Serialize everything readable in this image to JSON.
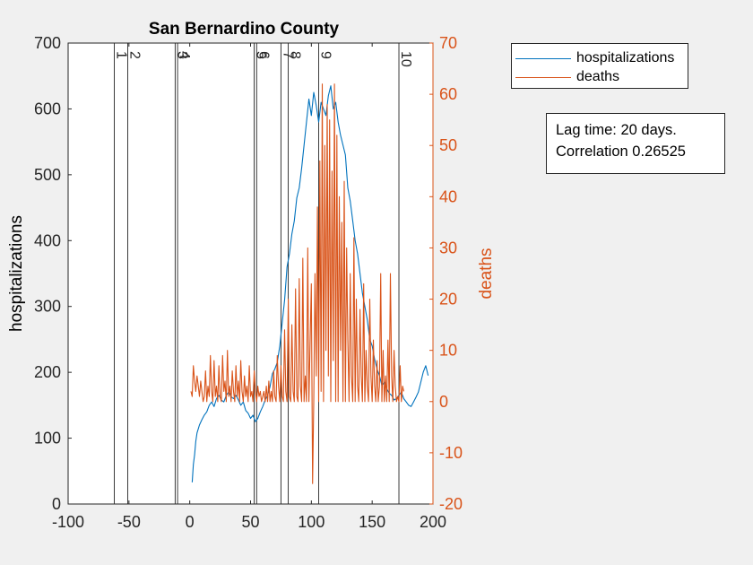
{
  "chart_data": {
    "type": "line",
    "title": "San Bernardino County",
    "xlabel": "",
    "ylabel": "hospitalizations",
    "ylabel_right": "deaths",
    "xlim": [
      -100,
      200
    ],
    "ylim": [
      0,
      700
    ],
    "ylim_right": [
      -20,
      70
    ],
    "xticks": [
      "-100",
      "-50",
      "0",
      "50",
      "100",
      "150",
      "200"
    ],
    "yticks": [
      "0",
      "100",
      "200",
      "300",
      "400",
      "500",
      "600",
      "700"
    ],
    "yticks_right": [
      "-20",
      "-10",
      "0",
      "10",
      "20",
      "30",
      "40",
      "50",
      "60",
      "70"
    ],
    "grid": false,
    "legend_position": "outside-top-right",
    "colors": {
      "hospitalizations": "#0072bd",
      "deaths": "#d95319",
      "event_lines": "#262626"
    },
    "events": [
      {
        "label": "1",
        "x": -62
      },
      {
        "label": "2",
        "x": -51
      },
      {
        "label": "3",
        "x": -12
      },
      {
        "label": "4",
        "x": -10
      },
      {
        "label": "5",
        "x": 53
      },
      {
        "label": "6",
        "x": 55
      },
      {
        "label": "7",
        "x": 75
      },
      {
        "label": "8",
        "x": 81
      },
      {
        "label": "9",
        "x": 106
      },
      {
        "label": "10",
        "x": 172
      }
    ],
    "series": [
      {
        "name": "hospitalizations",
        "axis": "left",
        "x": [
          2,
          3,
          4,
          5,
          6,
          8,
          10,
          12,
          14,
          16,
          18,
          20,
          22,
          24,
          26,
          28,
          30,
          32,
          34,
          36,
          38,
          40,
          42,
          44,
          46,
          48,
          50,
          52,
          54,
          56,
          58,
          60,
          62,
          64,
          66,
          68,
          70,
          72,
          74,
          76,
          78,
          80,
          82,
          84,
          86,
          88,
          90,
          92,
          94,
          96,
          98,
          100,
          102,
          104,
          106,
          108,
          110,
          112,
          114,
          116,
          118,
          120,
          122,
          124,
          126,
          128,
          130,
          132,
          134,
          136,
          138,
          140,
          142,
          144,
          146,
          148,
          150,
          152,
          154,
          156,
          158,
          160,
          162,
          164,
          166,
          168,
          170,
          172,
          174,
          176,
          178,
          180,
          182,
          184,
          186,
          188,
          190,
          192,
          194,
          196
        ],
        "values": [
          33,
          60,
          75,
          95,
          108,
          120,
          128,
          135,
          140,
          150,
          155,
          148,
          160,
          165,
          158,
          155,
          165,
          170,
          163,
          160,
          165,
          158,
          150,
          155,
          142,
          138,
          130,
          135,
          125,
          130,
          140,
          148,
          158,
          165,
          178,
          198,
          205,
          215,
          240,
          275,
          310,
          360,
          380,
          410,
          430,
          465,
          480,
          510,
          545,
          580,
          615,
          590,
          625,
          605,
          580,
          610,
          600,
          590,
          620,
          635,
          600,
          610,
          580,
          560,
          545,
          530,
          480,
          460,
          430,
          400,
          380,
          350,
          320,
          300,
          280,
          250,
          240,
          220,
          205,
          195,
          180,
          185,
          175,
          168,
          165,
          158,
          160,
          165,
          170,
          160,
          155,
          150,
          148,
          155,
          162,
          170,
          185,
          200,
          210,
          195
        ]
      },
      {
        "name": "deaths",
        "axis": "right",
        "x": [
          1,
          2,
          3,
          4,
          5,
          6,
          7,
          8,
          9,
          10,
          11,
          12,
          13,
          14,
          15,
          16,
          17,
          18,
          19,
          20,
          21,
          22,
          23,
          24,
          25,
          26,
          27,
          28,
          29,
          30,
          31,
          32,
          33,
          34,
          35,
          36,
          37,
          38,
          39,
          40,
          41,
          42,
          43,
          44,
          45,
          46,
          47,
          48,
          49,
          50,
          51,
          52,
          53,
          54,
          55,
          56,
          57,
          58,
          59,
          60,
          61,
          62,
          63,
          64,
          65,
          66,
          67,
          68,
          69,
          70,
          71,
          72,
          73,
          74,
          75,
          76,
          77,
          78,
          79,
          80,
          81,
          82,
          83,
          84,
          85,
          86,
          87,
          88,
          89,
          90,
          91,
          92,
          93,
          94,
          95,
          96,
          97,
          98,
          99,
          100,
          101,
          102,
          103,
          104,
          105,
          106,
          107,
          108,
          109,
          110,
          111,
          112,
          113,
          114,
          115,
          116,
          117,
          118,
          119,
          120,
          121,
          122,
          123,
          124,
          125,
          126,
          127,
          128,
          129,
          130,
          131,
          132,
          133,
          134,
          135,
          136,
          137,
          138,
          139,
          140,
          141,
          142,
          143,
          144,
          145,
          146,
          147,
          148,
          149,
          150,
          151,
          152,
          153,
          154,
          155,
          156,
          157,
          158,
          159,
          160,
          161,
          162,
          163,
          164,
          165,
          166,
          167,
          168,
          169,
          170,
          171,
          172,
          173,
          174,
          175,
          176
        ],
        "values": [
          2,
          1,
          7,
          4,
          2,
          5,
          3,
          1,
          4,
          2,
          0,
          1,
          6,
          0,
          3,
          1,
          9,
          2,
          0,
          8,
          1,
          3,
          0,
          7,
          1,
          0,
          9,
          2,
          4,
          0,
          10,
          1,
          3,
          0,
          6,
          2,
          0,
          7,
          1,
          4,
          0,
          8,
          2,
          0,
          5,
          1,
          3,
          0,
          7,
          1,
          2,
          0,
          6,
          2,
          0,
          3,
          1,
          2,
          0,
          1,
          2,
          0,
          3,
          0,
          4,
          0,
          2,
          0,
          6,
          1,
          0,
          9,
          3,
          0,
          7,
          1,
          0,
          14,
          2,
          0,
          20,
          1,
          0,
          15,
          2,
          0,
          22,
          1,
          0,
          24,
          3,
          0,
          28,
          0,
          5,
          0,
          30,
          0,
          12,
          23,
          -16,
          0,
          25,
          5,
          38,
          0,
          47,
          2,
          62,
          0,
          50,
          10,
          58,
          5,
          55,
          0,
          45,
          8,
          62,
          0,
          52,
          0,
          40,
          10,
          35,
          0,
          43,
          0,
          30,
          12,
          0,
          25,
          5,
          0,
          32,
          0,
          20,
          3,
          0,
          18,
          5,
          0,
          23,
          0,
          10,
          3,
          0,
          20,
          5,
          0,
          12,
          3,
          0,
          8,
          0,
          3,
          25,
          0,
          10,
          0,
          5,
          0,
          12,
          0,
          25,
          5,
          0,
          10,
          3,
          0,
          1,
          0,
          7,
          0,
          3,
          2
        ]
      }
    ]
  },
  "legend": {
    "items": [
      {
        "label": "hospitalizations",
        "color": "#0072bd"
      },
      {
        "label": "deaths",
        "color": "#d95319"
      }
    ]
  },
  "annotation": {
    "line1": "Lag time: 20 days.",
    "line2": "Correlation 0.26525"
  }
}
